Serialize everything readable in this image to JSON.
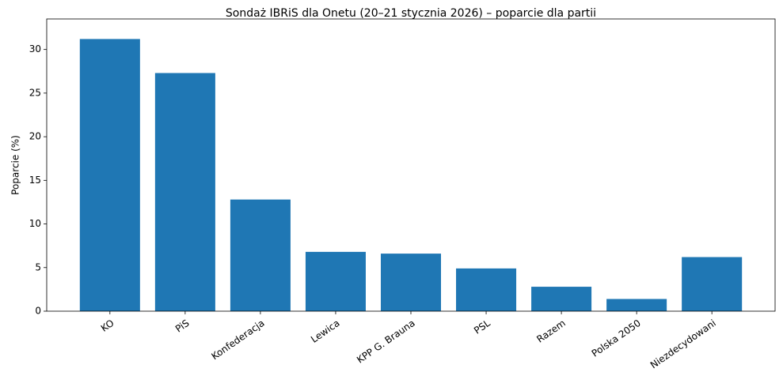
{
  "chart_data": {
    "type": "bar",
    "title": "Sondaż IBRiS dla Onetu (20–21 stycznia 2026) – poparcie dla partii",
    "y_label": "Poparcie (%)",
    "categories": [
      "KO",
      "PiS",
      "Konfederacja",
      "Lewica",
      "KPP G. Brauna",
      "PSL",
      "Razem",
      "Polska 2050",
      "Niezdecydowani"
    ],
    "values": [
      31.2,
      27.3,
      12.8,
      6.8,
      6.6,
      4.9,
      2.8,
      1.4,
      6.2
    ],
    "color": "#1f77b4",
    "ylim": [
      0,
      33.5
    ],
    "yticks": [
      0,
      5,
      10,
      15,
      20,
      25,
      30
    ],
    "grid": false
  }
}
